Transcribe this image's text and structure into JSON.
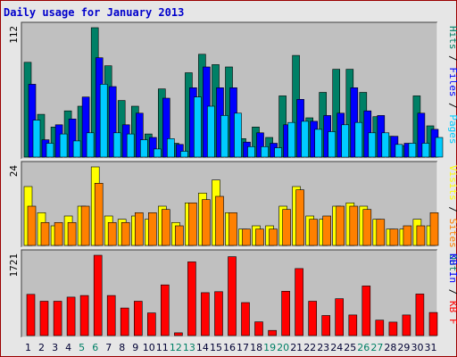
{
  "chart_data": {
    "type": "bar",
    "title": "Daily usage for January 2013",
    "colors": {
      "title": "#0000cc",
      "panel_bg": "#c0c0c0",
      "pages": "#00ccff",
      "files": "#0000ff",
      "hits": "#008066",
      "visits": "#ffff00",
      "sites": "#ff8000",
      "kb_in": "#0000ff",
      "kb_out": "#008066",
      "kb_f": "#ff0000",
      "weekend_day": "#008066",
      "weekday": "#000033"
    },
    "days": [
      "1",
      "2",
      "3",
      "4",
      "5",
      "6",
      "7",
      "8",
      "9",
      "10",
      "11",
      "12",
      "13",
      "14",
      "15",
      "16",
      "17",
      "18",
      "19",
      "20",
      "21",
      "22",
      "23",
      "24",
      "25",
      "26",
      "27",
      "28",
      "29",
      "30",
      "31"
    ],
    "weekend_days": [
      "5",
      "6",
      "12",
      "13",
      "19",
      "20",
      "26",
      "27"
    ],
    "panels": [
      {
        "axis_max_label": "112",
        "ylim": [
          0,
          112
        ],
        "legend": [
          {
            "text": "Hits",
            "color": "#008066"
          },
          {
            "text": " / ",
            "color": "#000000"
          },
          {
            "text": "Files",
            "color": "#0000ff"
          },
          {
            "text": " / ",
            "color": "#000000"
          },
          {
            "text": "Pages",
            "color": "#00ccff"
          }
        ],
        "series": [
          {
            "name": "Hits",
            "color": "#008066",
            "values": [
              82,
              37,
              26,
              40,
              44,
              112,
              79,
              49,
              44,
              20,
              59,
              12,
              73,
              89,
              80,
              78,
              16,
              26,
              17,
              53,
              88,
              34,
              56,
              76,
              76,
              56,
              35,
              18,
              10,
              53,
              27
            ]
          },
          {
            "name": "Files",
            "color": "#0000ff",
            "values": [
              63,
              15,
              28,
              33,
              52,
              86,
              61,
              28,
              38,
              17,
              51,
              11,
              60,
              78,
              60,
              60,
              13,
              21,
              12,
              28,
              50,
              31,
              36,
              38,
              60,
              40,
              36,
              18,
              12,
              38,
              24
            ]
          },
          {
            "name": "Pages",
            "color": "#00ccff",
            "values": [
              32,
              12,
              20,
              14,
              21,
              63,
              21,
              20,
              15,
              7,
              16,
              5,
              52,
              44,
              36,
              38,
              9,
              9,
              8,
              30,
              31,
              24,
              22,
              28,
              30,
              21,
              21,
              11,
              12,
              12,
              17
            ]
          }
        ]
      },
      {
        "axis_max_label": "24",
        "ylim": [
          0,
          24
        ],
        "legend": [
          {
            "text": "Visits",
            "color": "#ffff00"
          },
          {
            "text": " / ",
            "color": "#000000"
          },
          {
            "text": "Sites",
            "color": "#ff8000"
          },
          {
            "text": " Out",
            "color": "#008066"
          }
        ],
        "series": [
          {
            "name": "Visits",
            "color": "#ffff00",
            "values": [
              18,
              10,
              6,
              9,
              12,
              24,
              9,
              8,
              9,
              8,
              12,
              7,
              13,
              16,
              20,
              10,
              5,
              6,
              6,
              12,
              18,
              9,
              8,
              12,
              13,
              12,
              8,
              5,
              5,
              8,
              6
            ]
          },
          {
            "name": "Sites",
            "color": "#ff8000",
            "values": [
              12,
              7,
              7,
              7,
              12,
              19,
              7,
              7,
              10,
              10,
              11,
              6,
              13,
              14,
              15,
              10,
              5,
              5,
              5,
              11,
              17,
              8,
              9,
              12,
              12,
              11,
              8,
              5,
              6,
              6,
              10
            ]
          }
        ]
      },
      {
        "axis_max_label": "1721",
        "ylim": [
          0,
          1721
        ],
        "legend": [
          {
            "text": "KB In",
            "color": "#0000ff"
          },
          {
            "text": " / ",
            "color": "#000000"
          },
          {
            "text": "KB F",
            "color": "#ff0000"
          }
        ],
        "series": [
          {
            "name": "KB F",
            "color": "#ff0000",
            "values": [
              883,
              737,
              737,
              825,
              859,
              1721,
              859,
              590,
              737,
              485,
              1087,
              60,
              1579,
              920,
              941,
              1690,
              708,
              295,
              111,
              951,
              1437,
              737,
              431,
              790,
              441,
              1064,
              331,
              288,
              442,
              892,
              496
            ]
          }
        ]
      }
    ]
  }
}
